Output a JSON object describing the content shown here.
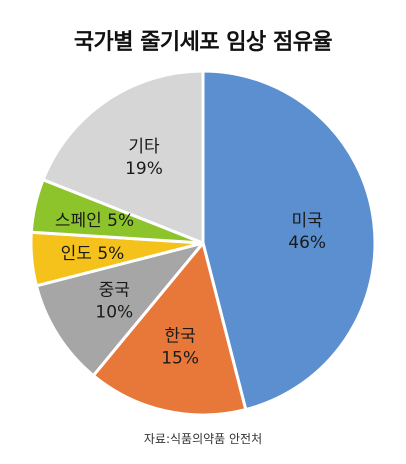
{
  "title": "국가별 줄기세포 임상 점유율",
  "source": "자료:식품의약품 안전처",
  "chart_data": {
    "type": "pie",
    "title": "국가별 줄기세포 임상 점유율",
    "slices": [
      {
        "label": "미국",
        "value": 46,
        "value_label": "46%",
        "color": "#5b8fd0"
      },
      {
        "label": "한국",
        "value": 15,
        "value_label": "15%",
        "color": "#e8773a"
      },
      {
        "label": "중국",
        "value": 10,
        "value_label": "10%",
        "color": "#a6a6a6"
      },
      {
        "label": "인도",
        "value": 5,
        "value_label": "5%",
        "color": "#f5c21b"
      },
      {
        "label": "스페인",
        "value": 5,
        "value_label": "5%",
        "color": "#8dc42c"
      },
      {
        "label": "기타",
        "value": 19,
        "value_label": "19%",
        "color": "#d6d6d6"
      }
    ]
  }
}
